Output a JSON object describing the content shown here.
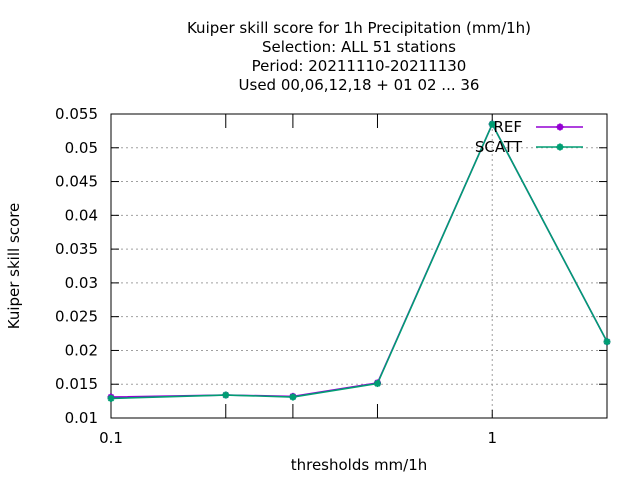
{
  "chart_data": {
    "type": "line",
    "title_lines": [
      "Kuiper skill score  for 1h Precipitation (mm/1h)",
      "Selection: ALL     51 stations",
      "Period: 20211110-20211130",
      "Used  00,06,12,18 + 01 02 ... 36"
    ],
    "xlabel": "thresholds mm/1h",
    "ylabel": "Kuiper skill score",
    "x_scale": "log",
    "xlim": [
      0.1,
      2
    ],
    "ylim": [
      0.01,
      0.055
    ],
    "x_ticks": [
      0.1,
      0.2,
      0.3,
      0.5,
      1,
      2
    ],
    "x_tick_labels": [
      "0.1",
      "",
      "",
      "",
      "1",
      ""
    ],
    "y_ticks": [
      0.01,
      0.015,
      0.02,
      0.025,
      0.03,
      0.035,
      0.04,
      0.045,
      0.05,
      0.055
    ],
    "y_tick_labels": [
      "0.01",
      "0.015",
      "0.02",
      "0.025",
      "0.03",
      "0.035",
      "0.04",
      "0.045",
      "0.05",
      "0.055"
    ],
    "grid": true,
    "legend_position": "top-right",
    "x": [
      0.1,
      0.2,
      0.3,
      0.5,
      1,
      2
    ],
    "series": [
      {
        "name": "REF",
        "color": "#9400d3",
        "values": [
          0.0131,
          0.0134,
          0.0132,
          0.0152,
          0.0535,
          0.0213
        ]
      },
      {
        "name": "SCATT",
        "color": "#009e73",
        "values": [
          0.0129,
          0.0134,
          0.0131,
          0.0151,
          0.0535,
          0.0213
        ]
      }
    ]
  }
}
